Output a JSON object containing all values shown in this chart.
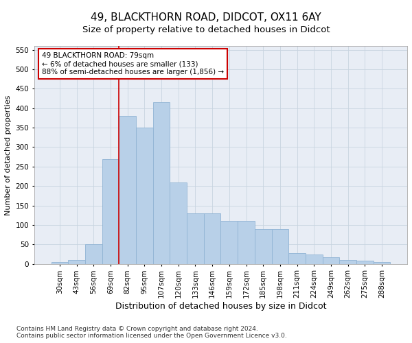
{
  "title1": "49, BLACKTHORN ROAD, DIDCOT, OX11 6AY",
  "title2": "Size of property relative to detached houses in Didcot",
  "xlabel": "Distribution of detached houses by size in Didcot",
  "ylabel": "Number of detached properties",
  "categories": [
    "30sqm",
    "43sqm",
    "56sqm",
    "69sqm",
    "82sqm",
    "95sqm",
    "107sqm",
    "120sqm",
    "133sqm",
    "146sqm",
    "159sqm",
    "172sqm",
    "185sqm",
    "198sqm",
    "211sqm",
    "224sqm",
    "249sqm",
    "262sqm",
    "275sqm",
    "288sqm"
  ],
  "values": [
    5,
    10,
    50,
    270,
    380,
    350,
    415,
    210,
    130,
    130,
    110,
    110,
    90,
    90,
    28,
    25,
    18,
    10,
    8,
    5
  ],
  "bar_color": "#b8d0e8",
  "bar_edge_color": "#90b4d4",
  "vline_color": "#cc0000",
  "vline_x": 3.5,
  "annotation_text": "49 BLACKTHORN ROAD: 79sqm\n← 6% of detached houses are smaller (133)\n88% of semi-detached houses are larger (1,856) →",
  "annotation_box_color": "#ffffff",
  "annotation_box_edge_color": "#cc0000",
  "ylim": [
    0,
    560
  ],
  "yticks": [
    0,
    50,
    100,
    150,
    200,
    250,
    300,
    350,
    400,
    450,
    500,
    550
  ],
  "grid_color": "#c8d4e0",
  "bg_color": "#e8edf5",
  "footer1": "Contains HM Land Registry data © Crown copyright and database right 2024.",
  "footer2": "Contains public sector information licensed under the Open Government Licence v3.0.",
  "title1_fontsize": 11,
  "title2_fontsize": 9.5,
  "xlabel_fontsize": 9,
  "ylabel_fontsize": 8,
  "tick_fontsize": 7.5,
  "annot_fontsize": 7.5,
  "footer_fontsize": 6.5
}
